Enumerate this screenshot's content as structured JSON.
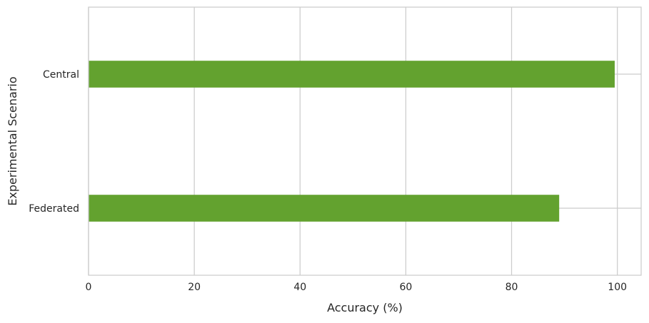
{
  "chart_data": {
    "type": "bar",
    "orientation": "horizontal",
    "categories": [
      "Federated",
      "Central"
    ],
    "values": [
      89,
      99.5
    ],
    "xlabel": "Accuracy (%)",
    "ylabel": "Experimental Scenario",
    "xlim": [
      0,
      104.5
    ],
    "xticks": [
      0,
      20,
      40,
      60,
      80,
      100
    ],
    "grid": true,
    "bar_color": "#63a22f",
    "grid_color": "#cccccc",
    "axis_color": "#cccccc",
    "background": "#ffffff"
  }
}
